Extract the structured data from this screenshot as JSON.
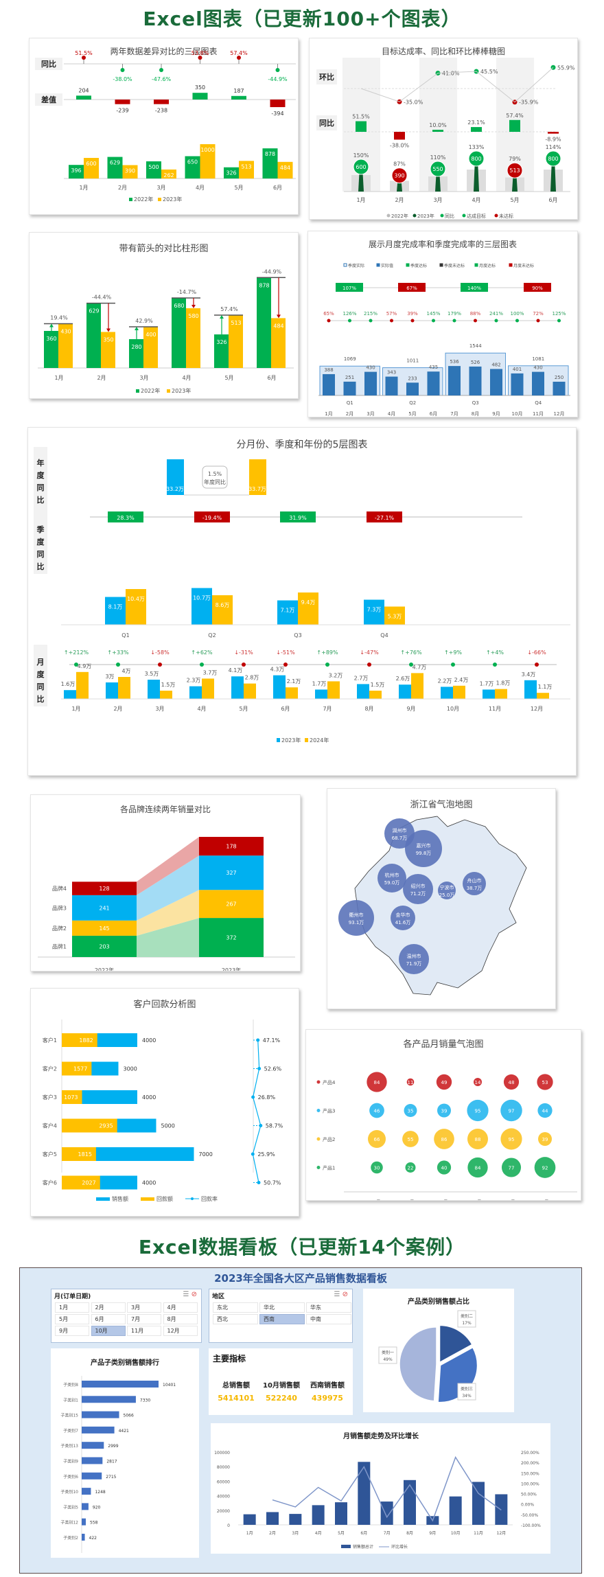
{
  "headers": {
    "charts": "Excel图表（已更新100+个图表）",
    "dashboards": "Excel数据看板（已更新14个案例）"
  },
  "colors": {
    "green": "#00b050",
    "yellow": "#ffc000",
    "red": "#c00000",
    "cyan": "#00b0f0",
    "blue": "#2e75b6",
    "dark_green": "#0b5d2c",
    "navy": "#2f5597",
    "light_blue": "#dce9f6"
  },
  "chart_data": [
    {
      "id": "c1",
      "type": "bar",
      "title": "两年数据差异对比的三层图表",
      "row_labels": [
        "同比",
        "差值"
      ],
      "categories": [
        "1月",
        "2月",
        "3月",
        "4月",
        "5月",
        "6月"
      ],
      "series": [
        {
          "name": "2022年",
          "values": [
            396,
            629,
            500,
            650,
            326,
            878
          ]
        },
        {
          "name": "2023年",
          "values": [
            600,
            390,
            262,
            1000,
            513,
            484
          ]
        }
      ],
      "diff": [
        204,
        -239,
        -238,
        350,
        187,
        -394
      ],
      "yoy": [
        "51.5%",
        "-38.0%",
        "-47.6%",
        "53.8%",
        "57.4%",
        "-44.9%"
      ],
      "yoy_positive": [
        true,
        false,
        false,
        true,
        true,
        false
      ]
    },
    {
      "id": "c2",
      "type": "bar",
      "title": "目标达成率、同比和环比棒棒糖图",
      "row_labels": [
        "环比",
        "同比"
      ],
      "categories": [
        "1月",
        "2月",
        "3月",
        "4月",
        "5月",
        "6月"
      ],
      "mom": [
        null,
        -35.0,
        41.0,
        45.5,
        -35.9,
        55.9
      ],
      "mom_labels": [
        "",
        "-35.0%",
        "41.0%",
        "45.5%",
        "-35.9%",
        "55.9%"
      ],
      "yoy": [
        51.5,
        -38.0,
        10.0,
        23.1,
        57.4,
        -8.9
      ],
      "yoy_labels": [
        "51.5%",
        "-38.0%",
        "10.0%",
        "23.1%",
        "57.4%",
        "-8.9%"
      ],
      "achievement": [
        "150%",
        "87%",
        "110%",
        "133%",
        "79%",
        "114%"
      ],
      "values_2023": [
        600,
        390,
        550,
        800,
        513,
        800
      ],
      "met_target": [
        true,
        false,
        true,
        true,
        false,
        true
      ],
      "legend": [
        "2022年",
        "2023年",
        "同比",
        "达成目标",
        "未达标"
      ]
    },
    {
      "id": "c3",
      "type": "bar",
      "title": "带有箭头的对比柱形图",
      "categories": [
        "1月",
        "2月",
        "3月",
        "4月",
        "5月",
        "6月"
      ],
      "series": [
        {
          "name": "2022年",
          "values": [
            360,
            629,
            280,
            680,
            326,
            878
          ]
        },
        {
          "name": "2023年",
          "values": [
            430,
            350,
            400,
            580,
            513,
            484
          ]
        }
      ],
      "change_labels": [
        "19.4%",
        "-44.4%",
        "42.9%",
        "-14.7%",
        "57.4%",
        "-44.9%"
      ]
    },
    {
      "id": "c4",
      "type": "bar",
      "title": "展示月度完成率和季度完成率的三层图表",
      "legend": [
        "季度实际",
        "实际值",
        "季度达标",
        "季度未达标",
        "月度达标",
        "月度未达标"
      ],
      "quarters": [
        "Q1",
        "Q2",
        "Q3",
        "Q4"
      ],
      "quarter_values": [
        1069,
        1011,
        1544,
        1081
      ],
      "quarter_rates": [
        "107%",
        "67%",
        "140%",
        "90%"
      ],
      "quarter_met": [
        true,
        false,
        true,
        false
      ],
      "categories": [
        "1月",
        "2月",
        "3月",
        "4月",
        "5月",
        "6月",
        "7月",
        "8月",
        "9月",
        "10月",
        "11月",
        "12月"
      ],
      "values": [
        388,
        251,
        430,
        343,
        233,
        435,
        536,
        526,
        482,
        401,
        430,
        250
      ],
      "month_rates": [
        "65%",
        "126%",
        "215%",
        "57%",
        "39%",
        "145%",
        "179%",
        "88%",
        "241%",
        "100%",
        "72%",
        "125%"
      ],
      "month_met": [
        false,
        true,
        true,
        false,
        false,
        true,
        true,
        false,
        true,
        true,
        false,
        true
      ]
    },
    {
      "id": "c5",
      "type": "bar",
      "title": "分月份、季度和年份的5层图表",
      "row_labels": [
        "年度同比",
        "季度同比",
        "月度同比"
      ],
      "annual": {
        "values": [
          "33.2万",
          "33.7万"
        ],
        "growth": "1.5%",
        "growth_label": "年度同比"
      },
      "quarters": [
        "Q1",
        "Q2",
        "Q3",
        "Q4"
      ],
      "quarter_series": [
        {
          "name": "2023年",
          "values": [
            8.1,
            10.7,
            7.1,
            7.3
          ]
        },
        {
          "name": "2024年",
          "values": [
            10.4,
            8.6,
            9.4,
            5.3
          ]
        }
      ],
      "quarter_growth": [
        "28.3%",
        "-19.4%",
        "31.9%",
        "-27.1%"
      ],
      "categories": [
        "1月",
        "2月",
        "3月",
        "4月",
        "5月",
        "6月",
        "7月",
        "8月",
        "9月",
        "10月",
        "11月",
        "12月"
      ],
      "series": [
        {
          "name": "2023年",
          "values": [
            1.6,
            3.0,
            3.5,
            2.3,
            4.1,
            4.3,
            1.7,
            2.7,
            2.6,
            2.2,
            1.7,
            3.4
          ]
        },
        {
          "name": "2024年",
          "values": [
            4.9,
            4.0,
            1.5,
            3.7,
            2.8,
            2.1,
            3.2,
            1.5,
            4.7,
            2.4,
            1.8,
            1.1
          ]
        }
      ],
      "month_growth": [
        "↑+212%",
        "↑+33%",
        "↓-58%",
        "↑+62%",
        "↓-31%",
        "↓-51%",
        "↑+89%",
        "↓-47%",
        "↑+76%",
        "↑+9%",
        "↑+4%",
        "↓-66%"
      ],
      "unit": "万"
    },
    {
      "id": "c6",
      "type": "bar",
      "title": "各品牌连续两年销量对比",
      "categories": [
        "2022年",
        "2023年"
      ],
      "series": [
        {
          "name": "品牌1",
          "values": [
            203,
            372
          ]
        },
        {
          "name": "品牌2",
          "values": [
            145,
            267
          ]
        },
        {
          "name": "品牌3",
          "values": [
            241,
            327
          ]
        },
        {
          "name": "品牌4",
          "values": [
            128,
            178
          ]
        }
      ]
    },
    {
      "id": "c7",
      "type": "scatter",
      "title": "浙江省气泡地图",
      "points": [
        {
          "name": "湖州市",
          "value": 68.7,
          "label": "68.7万"
        },
        {
          "name": "嘉兴市",
          "value": 99.8,
          "label": "99.8万"
        },
        {
          "name": "杭州市",
          "value": 59.0,
          "label": "59.0万"
        },
        {
          "name": "绍兴市",
          "value": 71.2,
          "label": "71.2万"
        },
        {
          "name": "宁波市",
          "value": 25.0,
          "label": "25.0万"
        },
        {
          "name": "舟山市",
          "value": 38.7,
          "label": "38.7万"
        },
        {
          "name": "衢州市",
          "value": 93.1,
          "label": "93.1万"
        },
        {
          "name": "金华市",
          "value": 41.6,
          "label": "41.6万"
        },
        {
          "name": "温州市",
          "value": 71.9,
          "label": "71.9万"
        }
      ]
    },
    {
      "id": "c8",
      "type": "bar",
      "title": "客户回款分析图",
      "categories": [
        "客户1",
        "客户2",
        "客户3",
        "客户4",
        "客户5",
        "客户6"
      ],
      "series": [
        {
          "name": "销售额",
          "values": [
            4000,
            3000,
            4000,
            5000,
            7000,
            4000
          ]
        },
        {
          "name": "回款额",
          "values": [
            1882,
            1577,
            1073,
            2935,
            1815,
            2027
          ]
        }
      ],
      "rate": [
        47.1,
        52.6,
        26.8,
        58.7,
        25.9,
        50.7
      ],
      "rate_labels": [
        "47.1%",
        "52.6%",
        "26.8%",
        "58.7%",
        "25.9%",
        "50.7%"
      ],
      "legend": [
        "销售额",
        "回款额",
        "回款率"
      ]
    },
    {
      "id": "c9",
      "type": "scatter",
      "title": "各产品月销量气泡图",
      "categories": [
        "1月",
        "2月",
        "3月",
        "4月",
        "5月",
        "6月"
      ],
      "series": [
        {
          "name": "产品4",
          "values": [
            84,
            11,
            49,
            14,
            48,
            53
          ]
        },
        {
          "name": "产品3",
          "values": [
            46,
            35,
            39,
            95,
            97,
            44
          ]
        },
        {
          "name": "产品2",
          "values": [
            66,
            55,
            86,
            88,
            95,
            39
          ]
        },
        {
          "name": "产品1",
          "values": [
            30,
            22,
            40,
            84,
            77,
            92
          ]
        }
      ]
    },
    {
      "id": "d1",
      "type": "bar",
      "title": "产品子类别销售额排行",
      "categories": [
        "子类别8",
        "子类别1",
        "子类别15",
        "子类别7",
        "子类别13",
        "子类别9",
        "子类别6",
        "子类别10",
        "子类别5",
        "子类别12",
        "子类别2"
      ],
      "values": [
        10401,
        7330,
        5066,
        4421,
        2999,
        2817,
        2715,
        1248,
        920,
        558,
        422
      ]
    },
    {
      "id": "d2",
      "type": "pie",
      "title": "产品类别销售额占比",
      "slices": [
        {
          "name": "类别二",
          "value": 17,
          "label": "17%"
        },
        {
          "name": "类别三",
          "value": 34,
          "label": "34%"
        },
        {
          "name": "类别一",
          "value": 49,
          "label": "49%"
        }
      ]
    },
    {
      "id": "d3",
      "type": "bar",
      "title": "月销售额走势及环比增长",
      "categories": [
        "1月",
        "2月",
        "3月",
        "4月",
        "5月",
        "6月",
        "7月",
        "8月",
        "9月",
        "10月",
        "11月",
        "12月"
      ],
      "series": [
        {
          "name": "销售额总计",
          "values": [
            14500,
            17500,
            15000,
            27000,
            31000,
            86500,
            32000,
            61500,
            12000,
            39000,
            59000,
            42000
          ]
        },
        {
          "name": "环比增长",
          "values": [
            null,
            20,
            -14,
            80,
            15,
            179,
            -63,
            92,
            -80,
            225,
            51,
            -29
          ]
        }
      ],
      "ylim": [
        0,
        100000
      ],
      "yticks": [
        "0",
        "20000",
        "40000",
        "60000",
        "80000",
        "100000"
      ],
      "y2lim": [
        -100,
        250
      ],
      "y2ticks": [
        "-100.00%",
        "-50.00%",
        "0.00%",
        "50.00%",
        "100.00%",
        "150.00%",
        "200.00%",
        "250.00%"
      ]
    }
  ],
  "dashboard": {
    "title": "2023年全国各大区产品销售数据看板",
    "month_slicer": {
      "header": "月(订单日期)",
      "items": [
        "1月",
        "2月",
        "3月",
        "4月",
        "5月",
        "6月",
        "7月",
        "8月",
        "9月",
        "10月",
        "11月",
        "12月"
      ],
      "selected": "10月"
    },
    "region_slicer": {
      "header": "地区",
      "items": [
        "东北",
        "华北",
        "华东",
        "西北",
        "西南",
        "中南"
      ],
      "selected": "西南"
    },
    "kpi": {
      "title": "主要指标",
      "items": [
        {
          "label": "总销售额",
          "value": "5414101"
        },
        {
          "label": "10月销售额",
          "value": "522240"
        },
        {
          "label": "西南销售额",
          "value": "439975"
        }
      ]
    }
  }
}
